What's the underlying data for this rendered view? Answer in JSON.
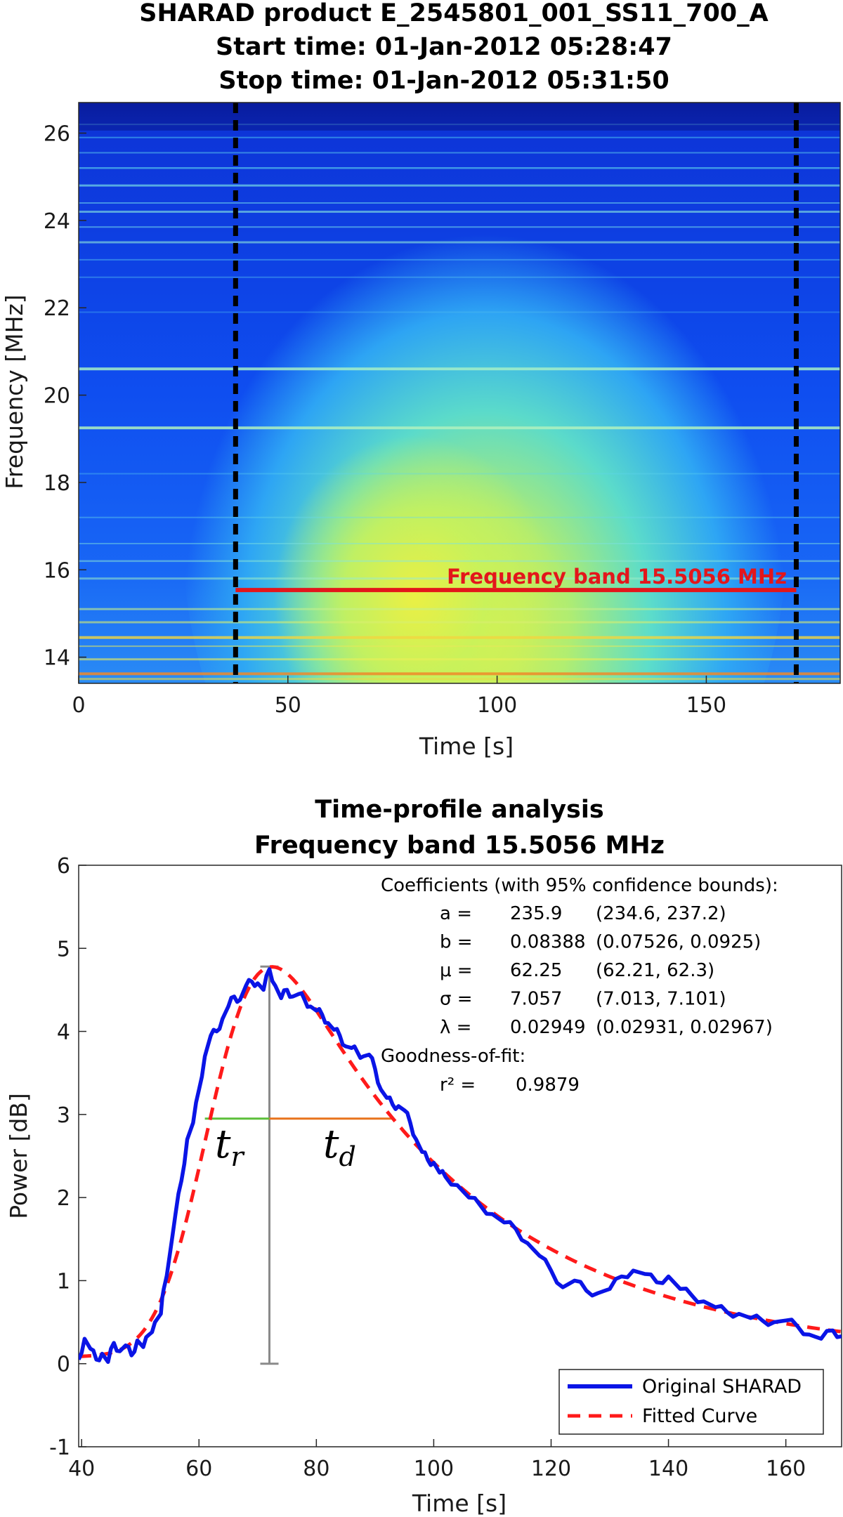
{
  "chart_data": [
    {
      "type": "heatmap",
      "title_lines": [
        "SHARAD product E_2545801_001_SS11_700_A",
        "Start time: 01-Jan-2012 05:28:47",
        "Stop time: 01-Jan-2012 05:31:50"
      ],
      "xlabel": "Time [s]",
      "ylabel": "Frequency [MHz]",
      "xlim": [
        0,
        182
      ],
      "ylim": [
        13.4,
        26.7
      ],
      "xticks": [
        0,
        50,
        100,
        150
      ],
      "yticks": [
        14,
        16,
        18,
        20,
        22,
        24,
        26
      ],
      "colormap": "jet",
      "vertical_markers_s": [
        37.5,
        171.5
      ],
      "band": {
        "label": "Frequency band 15.5056 MHz",
        "frequency_mhz": 15.5056,
        "time_range_s": [
          37.5,
          171.5
        ],
        "color": "#e3161b"
      }
    },
    {
      "type": "line",
      "title_lines": [
        "Time-profile analysis",
        "Frequency band 15.5056 MHz"
      ],
      "xlabel": "Time [s]",
      "ylabel": "Power [dB]",
      "xlim": [
        39.5,
        169.5
      ],
      "ylim": [
        -1,
        6
      ],
      "xticks": [
        40,
        60,
        80,
        100,
        120,
        140,
        160
      ],
      "yticks": [
        -1,
        0,
        1,
        2,
        3,
        4,
        5,
        6
      ],
      "series": [
        {
          "name": "Original SHARAD",
          "color": "#0a14e6",
          "style": "solid",
          "x": [
            39.5,
            40.5,
            41.5,
            42.5,
            43.5,
            44.5,
            45.5,
            46.5,
            47.5,
            48.5,
            49.5,
            50.5,
            51.5,
            52.5,
            53.5,
            54,
            55,
            56,
            57,
            58,
            59,
            60,
            61,
            62,
            63,
            64,
            65,
            66,
            67,
            68,
            69,
            70,
            71,
            72,
            73,
            74,
            75,
            76,
            77,
            78,
            79,
            80,
            81,
            82,
            83,
            84,
            85,
            86,
            87,
            88,
            89,
            90,
            91,
            92,
            93,
            94,
            95,
            96,
            97,
            98,
            99,
            100,
            101,
            102,
            104,
            106,
            108,
            110,
            112,
            114,
            116,
            118,
            120,
            122,
            124,
            126,
            128,
            130,
            132,
            134,
            136,
            138,
            140,
            142,
            144,
            146,
            148,
            150,
            152,
            154,
            156,
            158,
            160,
            162,
            164,
            166,
            168,
            169.5
          ],
          "y": [
            0.05,
            0.3,
            0.18,
            0.05,
            0.12,
            0.02,
            0.25,
            0.15,
            0.22,
            0.1,
            0.28,
            0.2,
            0.35,
            0.5,
            0.6,
            0.9,
            1.3,
            1.8,
            2.2,
            2.7,
            2.9,
            3.3,
            3.7,
            3.95,
            4.0,
            4.15,
            4.3,
            4.42,
            4.38,
            4.55,
            4.6,
            4.58,
            4.5,
            4.75,
            4.55,
            4.4,
            4.5,
            4.42,
            4.45,
            4.38,
            4.3,
            4.25,
            4.2,
            4.1,
            4.02,
            3.95,
            3.82,
            3.8,
            3.75,
            3.7,
            3.72,
            3.55,
            3.3,
            3.2,
            3.12,
            3.1,
            3.05,
            2.9,
            2.7,
            2.55,
            2.45,
            2.42,
            2.3,
            2.25,
            2.15,
            2.0,
            1.9,
            1.8,
            1.7,
            1.62,
            1.45,
            1.3,
            1.12,
            0.92,
            1.0,
            0.88,
            0.85,
            0.9,
            1.05,
            1.12,
            1.08,
            0.98,
            1.05,
            0.9,
            0.82,
            0.75,
            0.68,
            0.62,
            0.6,
            0.55,
            0.52,
            0.5,
            0.52,
            0.45,
            0.35,
            0.3,
            0.4,
            0.33
          ]
        },
        {
          "name": "Fitted Curve",
          "color": "#ff1a1a",
          "style": "dashed",
          "model": "exponentially modified gaussian",
          "params": {
            "a": 235.9,
            "b": 0.08388,
            "mu": 62.25,
            "sigma": 7.057,
            "lambda": 0.02949
          }
        }
      ],
      "coefficients": {
        "header": "Coefficients (with 95% confidence bounds):",
        "rows": [
          {
            "name": "a =",
            "value": "235.9",
            "bounds": "(234.6, 237.2)"
          },
          {
            "name": "b =",
            "value": "0.08388",
            "bounds": "(0.07526, 0.0925)"
          },
          {
            "name": "μ =",
            "value": "62.25",
            "bounds": "(62.21, 62.3)"
          },
          {
            "name": "σ =",
            "value": "7.057",
            "bounds": "(7.013, 7.101)"
          },
          {
            "name": "λ =",
            "value": "0.02949",
            "bounds": "(0.02931, 0.02967)"
          }
        ],
        "gof_header": "Goodness-of-fit:",
        "r2_label": "r² =",
        "r2_value": "0.9879"
      },
      "annotations": {
        "peak_time_s": 72,
        "peak_power_db": 4.78,
        "half_level_db": 2.95,
        "rise_start_s": 61,
        "decay_end_s": 93,
        "rise_color": "#5cbf3a",
        "decay_color": "#e8731c",
        "marker_color": "#8a8a8a",
        "rise_label": "t_r",
        "decay_label": "t_d"
      },
      "legend": {
        "entries": [
          "Original SHARAD",
          "Fitted Curve"
        ],
        "placement": "bottom-right"
      }
    }
  ]
}
